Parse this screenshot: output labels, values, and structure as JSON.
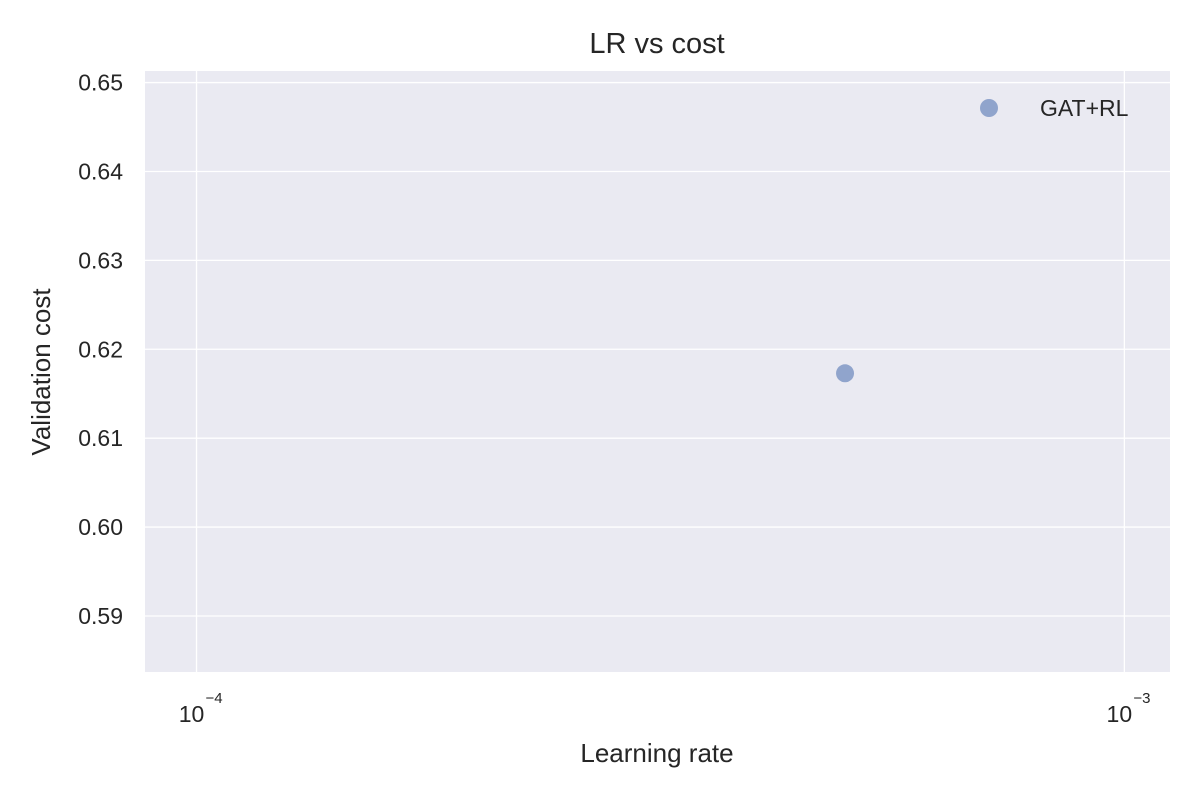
{
  "chart_data": {
    "type": "scatter",
    "title": "LR vs cost",
    "xlabel": "Learning rate",
    "ylabel": "Validation cost",
    "xscale": "log",
    "xlim": [
      8.8e-05,
      0.00112
    ],
    "ylim": [
      0.5837,
      0.6513
    ],
    "x_ticks": [
      {
        "value": 0.0001,
        "base": "10",
        "exponent": "−4"
      },
      {
        "value": 0.001,
        "base": "10",
        "exponent": "−3"
      }
    ],
    "y_ticks": [
      {
        "value": 0.59,
        "label": "0.59"
      },
      {
        "value": 0.6,
        "label": "0.60"
      },
      {
        "value": 0.61,
        "label": "0.61"
      },
      {
        "value": 0.62,
        "label": "0.62"
      },
      {
        "value": 0.63,
        "label": "0.63"
      },
      {
        "value": 0.64,
        "label": "0.64"
      },
      {
        "value": 0.65,
        "label": "0.65"
      }
    ],
    "grid": true,
    "legend_position": "top-right",
    "series": [
      {
        "name": "GAT+RL",
        "color": "#8098c6",
        "points": [
          {
            "x": 0.0005,
            "y": 0.6173
          }
        ]
      }
    ]
  }
}
